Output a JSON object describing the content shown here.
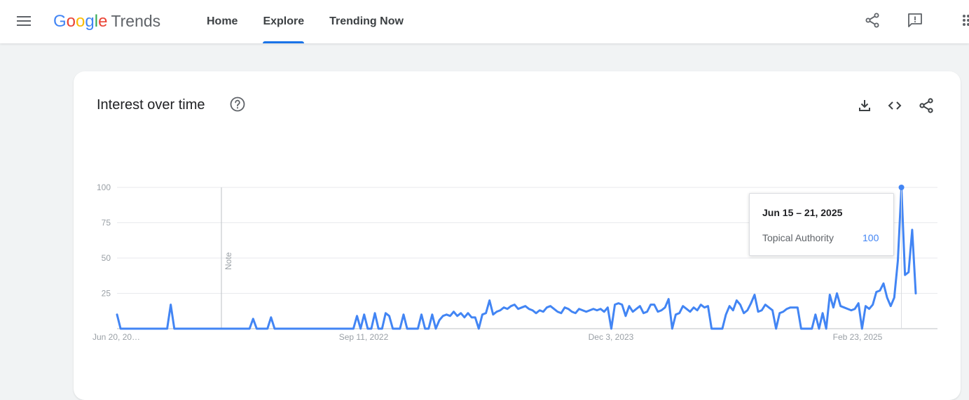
{
  "header": {
    "logo": {
      "brand": "Google",
      "product": "Trends"
    },
    "nav": [
      {
        "label": "Home",
        "active": false
      },
      {
        "label": "Explore",
        "active": true
      },
      {
        "label": "Trending Now",
        "active": false
      }
    ],
    "icons": [
      "menu-icon",
      "share-icon",
      "feedback-icon",
      "apps-icon"
    ]
  },
  "card": {
    "title": "Interest over time",
    "icons": [
      "help-icon",
      "download-icon",
      "embed-icon",
      "share-icon"
    ]
  },
  "colors": {
    "series": "#4285f4",
    "accent": "#1a73e8"
  },
  "chart_data": {
    "type": "line",
    "title": "Interest over time",
    "ylim": [
      0,
      100
    ],
    "yticks": [
      25,
      50,
      75,
      100
    ],
    "xtick_labels": [
      "Jun 20, 20…",
      "Sep 11, 2022",
      "Dec 3, 2023",
      "Feb 23, 2025"
    ],
    "note_label": "Note",
    "grid": true,
    "series": [
      {
        "name": "Topical Authority",
        "values": [
          10,
          0,
          0,
          0,
          0,
          0,
          0,
          0,
          0,
          0,
          0,
          0,
          0,
          0,
          0,
          17,
          0,
          0,
          0,
          0,
          0,
          0,
          0,
          0,
          0,
          0,
          0,
          0,
          0,
          0,
          0,
          0,
          0,
          0,
          0,
          0,
          0,
          0,
          7,
          0,
          0,
          0,
          0,
          8,
          0,
          0,
          0,
          0,
          0,
          0,
          0,
          0,
          0,
          0,
          0,
          0,
          0,
          0,
          0,
          0,
          0,
          0,
          0,
          0,
          0,
          0,
          0,
          9,
          0,
          10,
          0,
          0,
          11,
          0,
          0,
          11,
          9,
          0,
          0,
          0,
          10,
          0,
          0,
          0,
          0,
          10,
          0,
          0,
          10,
          0,
          6,
          9,
          10,
          9,
          12,
          9,
          11,
          8,
          11,
          8,
          8,
          0,
          10,
          11,
          20,
          10,
          12,
          13,
          15,
          14,
          16,
          17,
          14,
          15,
          16,
          14,
          13,
          11,
          13,
          12,
          15,
          16,
          14,
          12,
          11,
          15,
          14,
          12,
          11,
          14,
          13,
          12,
          13,
          14,
          13,
          14,
          12,
          15,
          0,
          17,
          18,
          17,
          9,
          16,
          12,
          14,
          16,
          11,
          12,
          17,
          17,
          12,
          13,
          15,
          21,
          0,
          10,
          11,
          16,
          14,
          12,
          15,
          13,
          17,
          15,
          16,
          0,
          0,
          0,
          0,
          10,
          16,
          13,
          20,
          17,
          11,
          13,
          18,
          24,
          12,
          13,
          17,
          15,
          13,
          0,
          11,
          12,
          14,
          15,
          15,
          15,
          0,
          0,
          0,
          0,
          10,
          0,
          11,
          0,
          24,
          15,
          25,
          16,
          15,
          14,
          13,
          14,
          18,
          0,
          16,
          14,
          17,
          26,
          27,
          32,
          22,
          16,
          22,
          48,
          100,
          38,
          40,
          70,
          25
        ],
        "highlight": {
          "label": "Jun 15 – 21, 2025",
          "value": 100
        }
      }
    ]
  }
}
